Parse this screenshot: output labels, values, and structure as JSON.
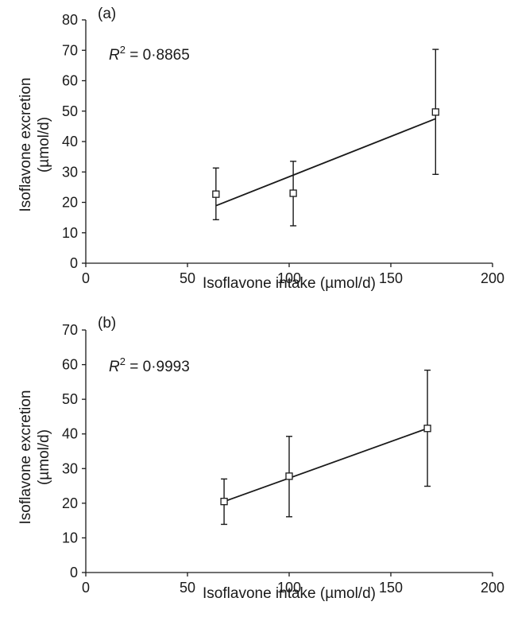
{
  "chart_data": [
    {
      "type": "scatter",
      "panel_label": "(a)",
      "annotation_prefix": "R",
      "annotation_exp": "2",
      "annotation_value": " = 0·8865",
      "xlabel": "Isoflavone intake (µmol/d)",
      "ylabel_line1": "Isoflavone excretion",
      "ylabel_line2": "(µmol/d)",
      "xlim": [
        0,
        200
      ],
      "ylim": [
        0,
        80
      ],
      "xticks": [
        0,
        50,
        100,
        150,
        200
      ],
      "yticks": [
        0,
        10,
        20,
        30,
        40,
        50,
        60,
        70,
        80
      ],
      "grid": false,
      "points": [
        {
          "x": 64,
          "y": 22.7,
          "err_low": 14.3,
          "err_high": 31.3
        },
        {
          "x": 102,
          "y": 23.0,
          "err_low": 12.3,
          "err_high": 33.5
        },
        {
          "x": 172,
          "y": 49.7,
          "err_low": 29.2,
          "err_high": 70.3
        }
      ],
      "fit_line": {
        "x": [
          64,
          172
        ],
        "y": [
          18.9,
          47.5
        ]
      }
    },
    {
      "type": "scatter",
      "panel_label": "(b)",
      "annotation_prefix": "R",
      "annotation_exp": "2",
      "annotation_value": " = 0·9993",
      "xlabel": "Isoflavone intake (µmol/d)",
      "ylabel_line1": "Isoflavone excretion",
      "ylabel_line2": "(µmol/d)",
      "xlim": [
        0,
        200
      ],
      "ylim": [
        0,
        70
      ],
      "xticks": [
        0,
        50,
        100,
        150,
        200
      ],
      "yticks": [
        0,
        10,
        20,
        30,
        40,
        50,
        60,
        70
      ],
      "grid": false,
      "points": [
        {
          "x": 68,
          "y": 20.5,
          "err_low": 13.9,
          "err_high": 27.0
        },
        {
          "x": 100,
          "y": 27.8,
          "err_low": 16.1,
          "err_high": 39.3
        },
        {
          "x": 168,
          "y": 41.6,
          "err_low": 24.9,
          "err_high": 58.4
        }
      ],
      "fit_line": {
        "x": [
          68,
          168
        ],
        "y": [
          20.5,
          41.6
        ]
      }
    }
  ]
}
